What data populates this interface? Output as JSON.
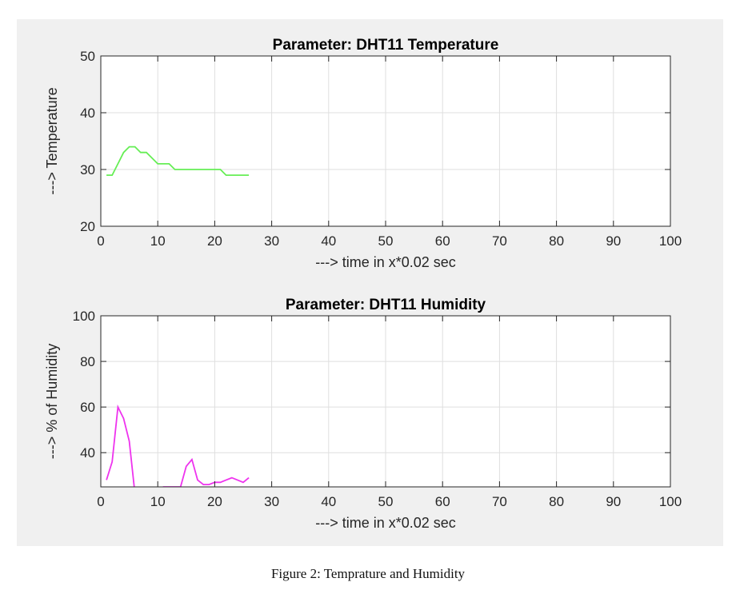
{
  "caption": "Figure 2:  Temprature and Humidity",
  "chart_data": [
    {
      "type": "line",
      "title": "Parameter: DHT11 Temperature",
      "xlabel": "---> time in x*0.02 sec",
      "ylabel": "---> Temperature",
      "xlim": [
        0,
        100
      ],
      "ylim": [
        20,
        50
      ],
      "xticks": [
        0,
        10,
        20,
        30,
        40,
        50,
        60,
        70,
        80,
        90,
        100
      ],
      "yticks": [
        20,
        30,
        40,
        50
      ],
      "grid": true,
      "series": [
        {
          "color": "#66ee55",
          "x": [
            1,
            2,
            3,
            4,
            5,
            6,
            7,
            8,
            9,
            10,
            11,
            12,
            13,
            14,
            15,
            16,
            17,
            18,
            19,
            20,
            21,
            22,
            23,
            24,
            25,
            26
          ],
          "y": [
            29,
            29,
            31,
            33,
            34,
            34,
            33,
            33,
            32,
            31,
            31,
            31,
            30,
            30,
            30,
            30,
            30,
            30,
            30,
            30,
            30,
            29,
            29,
            29,
            29,
            29
          ]
        }
      ]
    },
    {
      "type": "line",
      "title": "Parameter: DHT11 Humidity",
      "xlabel": "---> time in x*0.02 sec",
      "ylabel": "---> % of Humidity",
      "xlim": [
        0,
        100
      ],
      "ylim": [
        25,
        100
      ],
      "xticks": [
        0,
        10,
        20,
        30,
        40,
        50,
        60,
        70,
        80,
        90,
        100
      ],
      "yticks": [
        40,
        60,
        80,
        100
      ],
      "grid": true,
      "series": [
        {
          "color": "#ee33ee",
          "x": [
            1,
            2,
            3,
            4,
            5,
            6,
            7,
            8,
            9,
            10,
            11,
            12,
            13,
            14,
            15,
            16,
            17,
            18,
            19,
            20,
            21,
            22,
            23,
            24,
            25,
            26
          ],
          "y": [
            28,
            36,
            60,
            55,
            45,
            22,
            20,
            20,
            20,
            20,
            25,
            25,
            25,
            25,
            34,
            37,
            28,
            26,
            26,
            27,
            27,
            28,
            29,
            28,
            27,
            29
          ]
        }
      ]
    }
  ]
}
